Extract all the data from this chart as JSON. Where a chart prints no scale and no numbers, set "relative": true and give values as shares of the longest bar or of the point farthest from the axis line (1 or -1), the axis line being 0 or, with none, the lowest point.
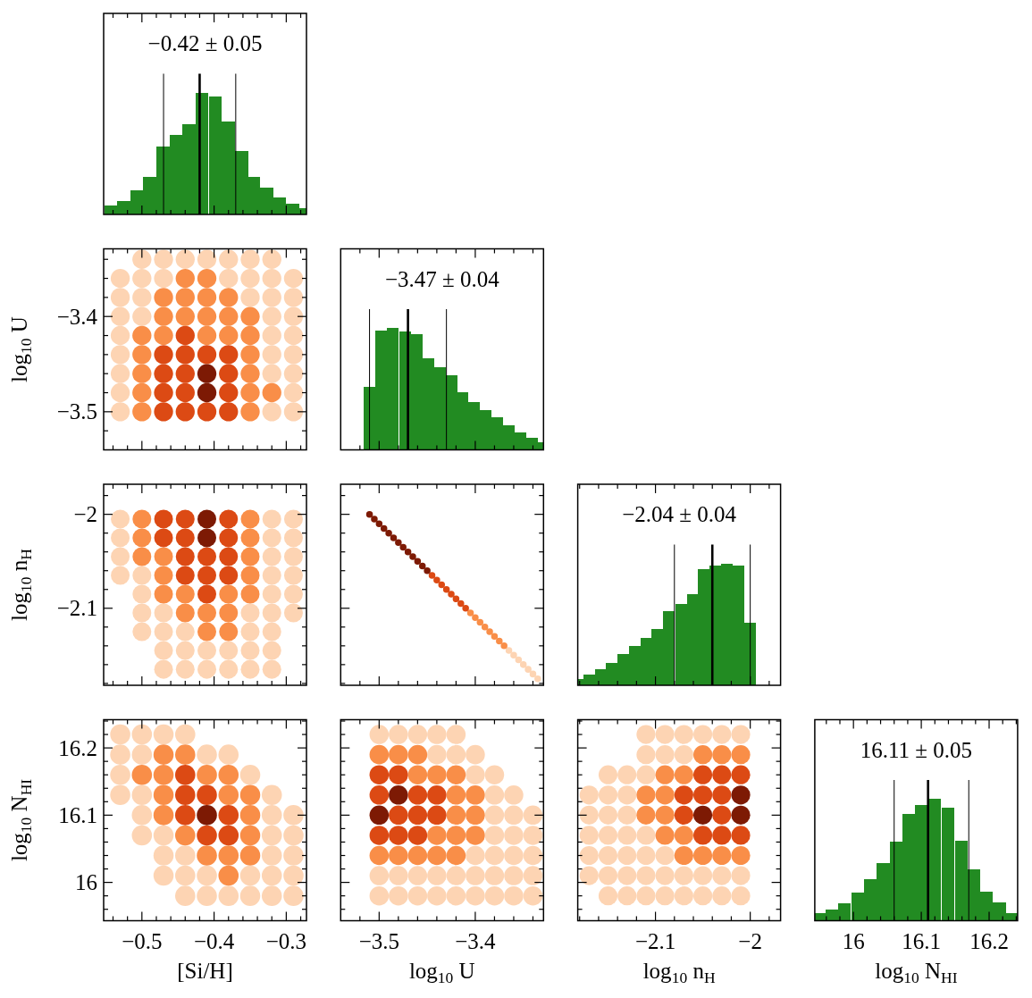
{
  "chart_data": [
    {
      "type": "bar",
      "title": "−0.42 ± 0.05",
      "relative": true,
      "color": "#228b22",
      "x": [
        -0.543,
        -0.525,
        -0.507,
        -0.489,
        -0.471,
        -0.453,
        -0.435,
        -0.417,
        -0.398,
        -0.38,
        -0.362,
        -0.345,
        -0.327,
        -0.309,
        -0.291,
        -0.273
      ],
      "values": [
        0.07,
        0.11,
        0.2,
        0.31,
        0.56,
        0.65,
        0.74,
        1,
        0.97,
        0.76,
        0.52,
        0.31,
        0.22,
        0.14,
        0.09,
        0.05
      ],
      "xlim": [
        -0.553,
        -0.272
      ],
      "xticks": [
        {
          "value": -0.54,
          "label": null
        },
        {
          "value": -0.52,
          "label": null
        },
        -0.5,
        {
          "value": -0.48,
          "label": null
        },
        {
          "value": -0.46,
          "label": null
        },
        {
          "value": -0.44,
          "label": null
        },
        {
          "value": -0.42,
          "label": null
        },
        -0.4,
        {
          "value": -0.38,
          "label": null
        },
        {
          "value": -0.36,
          "label": null
        },
        {
          "value": -0.34,
          "label": null
        },
        {
          "value": -0.32,
          "label": null
        },
        -0.3,
        {
          "value": -0.28,
          "label": null
        }
      ],
      "ref_lines": [
        {
          "axis": "x",
          "value": -0.47,
          "color": "#000000"
        },
        {
          "axis": "x",
          "value": -0.42,
          "color": "#000000"
        },
        {
          "axis": "x",
          "value": -0.37,
          "color": "#000000"
        }
      ],
      "tick_labels": false
    },
    {
      "type": "scatter",
      "ylabel": "log$_{10}$ U",
      "marker": "circle",
      "xlim": [
        -0.553,
        -0.272
      ],
      "xticks": [
        {
          "value": -0.54,
          "label": null
        },
        {
          "value": -0.52,
          "label": null
        },
        -0.5,
        {
          "value": -0.48,
          "label": null
        },
        {
          "value": -0.46,
          "label": null
        },
        {
          "value": -0.44,
          "label": null
        },
        {
          "value": -0.42,
          "label": null
        },
        -0.4,
        {
          "value": -0.38,
          "label": null
        },
        {
          "value": -0.36,
          "label": null
        },
        {
          "value": -0.34,
          "label": null
        },
        {
          "value": -0.32,
          "label": null
        },
        -0.3,
        {
          "value": -0.28,
          "label": null
        }
      ],
      "ylim": [
        -3.54,
        -3.329
      ],
      "yticks": [
        {
          "value": -3.52,
          "label": null
        },
        {
          "value": -3.5,
          "label": "−3.5"
        },
        {
          "value": -3.48,
          "label": null
        },
        {
          "value": -3.46,
          "label": null
        },
        {
          "value": -3.44,
          "label": null
        },
        {
          "value": -3.42,
          "label": null
        },
        {
          "value": -3.4,
          "label": "−3.4"
        },
        {
          "value": -3.38,
          "label": null
        },
        {
          "value": -3.36,
          "label": null
        },
        {
          "value": -3.34,
          "label": null
        }
      ],
      "tick_labels": "y",
      "series": [
        {
          "color": "#fdd4b3",
          "x": [
            -0.5,
            -0.47,
            -0.44,
            -0.41,
            -0.38,
            -0.35,
            -0.32,
            -0.53,
            -0.5,
            -0.47,
            -0.38,
            -0.35,
            -0.32,
            -0.29,
            -0.53,
            -0.5,
            -0.35,
            -0.32,
            -0.29,
            -0.53,
            -0.5,
            -0.32,
            -0.29,
            -0.53,
            -0.32,
            -0.29,
            -0.53,
            -0.32,
            -0.29,
            -0.53,
            -0.32,
            -0.29,
            -0.53,
            -0.29,
            -0.53,
            -0.32,
            -0.29
          ],
          "values": [
            -3.34,
            -3.34,
            -3.34,
            -3.34,
            -3.34,
            -3.34,
            -3.34,
            -3.36,
            -3.36,
            -3.36,
            -3.36,
            -3.36,
            -3.36,
            -3.36,
            -3.38,
            -3.38,
            -3.38,
            -3.38,
            -3.38,
            -3.4,
            -3.4,
            -3.4,
            -3.4,
            -3.42,
            -3.42,
            -3.42,
            -3.44,
            -3.44,
            -3.44,
            -3.46,
            -3.46,
            -3.46,
            -3.48,
            -3.48,
            -3.5,
            -3.5,
            -3.5
          ]
        },
        {
          "color": "#f98e48",
          "x": [
            -0.44,
            -0.41,
            -0.47,
            -0.44,
            -0.41,
            -0.38,
            -0.47,
            -0.44,
            -0.41,
            -0.38,
            -0.35,
            -0.5,
            -0.47,
            -0.41,
            -0.38,
            -0.35,
            -0.5,
            -0.35,
            -0.5,
            -0.35,
            -0.5,
            -0.35,
            -0.32,
            -0.5,
            -0.35
          ],
          "values": [
            -3.36,
            -3.36,
            -3.38,
            -3.38,
            -3.38,
            -3.38,
            -3.4,
            -3.4,
            -3.4,
            -3.4,
            -3.4,
            -3.42,
            -3.42,
            -3.42,
            -3.42,
            -3.42,
            -3.44,
            -3.44,
            -3.46,
            -3.46,
            -3.48,
            -3.48,
            -3.48,
            -3.5,
            -3.5
          ]
        },
        {
          "color": "#dc4a14",
          "x": [
            -0.44,
            -0.47,
            -0.44,
            -0.41,
            -0.38,
            -0.47,
            -0.44,
            -0.38,
            -0.47,
            -0.44,
            -0.38,
            -0.47,
            -0.44,
            -0.41,
            -0.38
          ],
          "values": [
            -3.42,
            -3.44,
            -3.44,
            -3.44,
            -3.44,
            -3.46,
            -3.46,
            -3.46,
            -3.48,
            -3.48,
            -3.48,
            -3.5,
            -3.5,
            -3.5,
            -3.5
          ]
        },
        {
          "color": "#7d1a04",
          "x": [
            -0.41,
            -0.41
          ],
          "values": [
            -3.46,
            -3.48
          ]
        }
      ]
    },
    {
      "type": "bar",
      "title": "−3.47 ± 0.04",
      "relative": true,
      "color": "#228b22",
      "x": [
        -3.51,
        -3.498,
        -3.486,
        -3.473,
        -3.461,
        -3.449,
        -3.437,
        -3.425,
        -3.413,
        -3.401,
        -3.389,
        -3.377,
        -3.365,
        -3.353,
        -3.341,
        -3.329
      ],
      "values": [
        0.52,
        0.98,
        1,
        0.97,
        0.95,
        0.75,
        0.68,
        0.61,
        0.47,
        0.39,
        0.33,
        0.27,
        0.2,
        0.14,
        0.1,
        0.06
      ],
      "xlim": [
        -3.54,
        -3.329
      ],
      "xticks": [
        {
          "value": -3.52,
          "label": null
        },
        -3.5,
        {
          "value": -3.48,
          "label": null
        },
        {
          "value": -3.46,
          "label": null
        },
        {
          "value": -3.44,
          "label": null
        },
        {
          "value": -3.42,
          "label": null
        },
        -3.4,
        {
          "value": -3.38,
          "label": null
        },
        {
          "value": -3.36,
          "label": null
        },
        {
          "value": -3.34,
          "label": null
        }
      ],
      "ref_lines": [
        {
          "axis": "x",
          "value": -3.51,
          "color": "#000000"
        },
        {
          "axis": "x",
          "value": -3.47,
          "color": "#000000"
        },
        {
          "axis": "x",
          "value": -3.43,
          "color": "#000000"
        }
      ],
      "tick_labels": false
    },
    {
      "type": "scatter",
      "ylabel": "log$_{10}$ n$_{H}$",
      "marker": "circle",
      "xlim": [
        -0.553,
        -0.272
      ],
      "xticks": [
        {
          "value": -0.54,
          "label": null
        },
        {
          "value": -0.52,
          "label": null
        },
        -0.5,
        {
          "value": -0.48,
          "label": null
        },
        {
          "value": -0.46,
          "label": null
        },
        {
          "value": -0.44,
          "label": null
        },
        {
          "value": -0.42,
          "label": null
        },
        -0.4,
        {
          "value": -0.38,
          "label": null
        },
        {
          "value": -0.36,
          "label": null
        },
        {
          "value": -0.34,
          "label": null
        },
        {
          "value": -0.32,
          "label": null
        },
        -0.3,
        {
          "value": -0.28,
          "label": null
        }
      ],
      "ylim": [
        -2.182,
        -1.968
      ],
      "yticks": [
        {
          "value": -2.18,
          "label": null
        },
        {
          "value": -2.16,
          "label": null
        },
        {
          "value": -2.14,
          "label": null
        },
        {
          "value": -2.12,
          "label": null
        },
        {
          "value": -2.1,
          "label": "−2.1"
        },
        {
          "value": -2.08,
          "label": null
        },
        {
          "value": -2.06,
          "label": null
        },
        {
          "value": -2.04,
          "label": null
        },
        {
          "value": -2.02,
          "label": null
        },
        {
          "value": -2,
          "label": "−2"
        },
        {
          "value": -1.98,
          "label": null
        }
      ],
      "tick_labels": "y",
      "series": [
        {
          "color": "#fdd4b3",
          "x": [
            -0.53,
            -0.32,
            -0.29,
            -0.53,
            -0.32,
            -0.29,
            -0.53,
            -0.32,
            -0.29,
            -0.53,
            -0.5,
            -0.32,
            -0.29,
            -0.5,
            -0.32,
            -0.29,
            -0.5,
            -0.47,
            -0.35,
            -0.32,
            -0.29,
            -0.5,
            -0.47,
            -0.44,
            -0.35,
            -0.32,
            -0.47,
            -0.44,
            -0.41,
            -0.38,
            -0.35,
            -0.32,
            -0.47,
            -0.44,
            -0.41,
            -0.38,
            -0.35,
            -0.32
          ],
          "values": [
            -2.005,
            -2.005,
            -2.005,
            -2.025,
            -2.025,
            -2.025,
            -2.045,
            -2.045,
            -2.045,
            -2.065,
            -2.065,
            -2.065,
            -2.065,
            -2.085,
            -2.085,
            -2.085,
            -2.105,
            -2.105,
            -2.105,
            -2.105,
            -2.105,
            -2.125,
            -2.125,
            -2.125,
            -2.125,
            -2.125,
            -2.145,
            -2.145,
            -2.145,
            -2.145,
            -2.145,
            -2.145,
            -2.165,
            -2.165,
            -2.165,
            -2.165,
            -2.165,
            -2.165
          ]
        },
        {
          "color": "#f98e48",
          "x": [
            -0.5,
            -0.35,
            -0.5,
            -0.35,
            -0.5,
            -0.47,
            -0.35,
            -0.47,
            -0.35,
            -0.47,
            -0.44,
            -0.38,
            -0.35,
            -0.44,
            -0.41,
            -0.38,
            -0.41,
            -0.38
          ],
          "values": [
            -2.005,
            -2.005,
            -2.025,
            -2.025,
            -2.045,
            -2.045,
            -2.045,
            -2.065,
            -2.065,
            -2.085,
            -2.085,
            -2.085,
            -2.085,
            -2.105,
            -2.105,
            -2.105,
            -2.125,
            -2.125
          ]
        },
        {
          "color": "#dc4a14",
          "x": [
            -0.47,
            -0.44,
            -0.38,
            -0.47,
            -0.44,
            -0.38,
            -0.44,
            -0.41,
            -0.38,
            -0.44,
            -0.41,
            -0.38,
            -0.41
          ],
          "values": [
            -2.005,
            -2.005,
            -2.005,
            -2.025,
            -2.025,
            -2.025,
            -2.045,
            -2.045,
            -2.045,
            -2.065,
            -2.065,
            -2.065,
            -2.085
          ]
        },
        {
          "color": "#7d1a04",
          "x": [
            -0.41,
            -0.41
          ],
          "values": [
            -2.005,
            -2.025
          ]
        }
      ]
    },
    {
      "type": "scatter",
      "marker": "circle",
      "xlim": [
        -3.54,
        -3.329
      ],
      "xticks": [
        {
          "value": -3.52,
          "label": null
        },
        -3.5,
        {
          "value": -3.48,
          "label": null
        },
        {
          "value": -3.46,
          "label": null
        },
        {
          "value": -3.44,
          "label": null
        },
        {
          "value": -3.42,
          "label": null
        },
        -3.4,
        {
          "value": -3.38,
          "label": null
        },
        {
          "value": -3.36,
          "label": null
        },
        {
          "value": -3.34,
          "label": null
        }
      ],
      "ylim": [
        -2.182,
        -1.968
      ],
      "yticks": [
        {
          "value": -2.18,
          "label": null
        },
        {
          "value": -2.16,
          "label": null
        },
        {
          "value": -2.14,
          "label": null
        },
        {
          "value": -2.12,
          "label": null
        },
        -2.1,
        {
          "value": -2.08,
          "label": null
        },
        {
          "value": -2.06,
          "label": null
        },
        {
          "value": -2.04,
          "label": null
        },
        {
          "value": -2.02,
          "label": null
        },
        -2,
        {
          "value": -1.98,
          "label": null
        }
      ],
      "tick_labels": false,
      "series": [
        {
          "color": "#fdd4b3",
          "x": [
            -3.365,
            -3.36,
            -3.355,
            -3.35,
            -3.345,
            -3.34,
            -3.335
          ],
          "values": [
            -2.145,
            -2.15,
            -2.155,
            -2.16,
            -2.165,
            -2.17,
            -2.175
          ]
        },
        {
          "color": "#f98e48",
          "x": [
            -3.405,
            -3.4,
            -3.395,
            -3.39,
            -3.385,
            -3.38,
            -3.375,
            -3.37
          ],
          "values": [
            -2.105,
            -2.11,
            -2.115,
            -2.12,
            -2.125,
            -2.13,
            -2.135,
            -2.14
          ]
        },
        {
          "color": "#dc4a14",
          "x": [
            -3.445,
            -3.44,
            -3.435,
            -3.43,
            -3.425,
            -3.42,
            -3.415,
            -3.41
          ],
          "values": [
            -2.065,
            -2.07,
            -2.075,
            -2.08,
            -2.085,
            -2.09,
            -2.095,
            -2.1
          ]
        },
        {
          "color": "#7d1a04",
          "x": [
            -3.51,
            -3.505,
            -3.5,
            -3.495,
            -3.49,
            -3.485,
            -3.48,
            -3.475,
            -3.47,
            -3.465,
            -3.46,
            -3.455,
            -3.45
          ],
          "values": [
            -2,
            -2.005,
            -2.01,
            -2.015,
            -2.02,
            -2.025,
            -2.03,
            -2.035,
            -2.04,
            -2.045,
            -2.05,
            -2.055,
            -2.06
          ]
        }
      ]
    },
    {
      "type": "bar",
      "title": "−2.04 ± 0.04",
      "relative": true,
      "color": "#228b22",
      "x": [
        -2.182,
        -2.17,
        -2.158,
        -2.146,
        -2.134,
        -2.122,
        -2.11,
        -2.098,
        -2.086,
        -2.073,
        -2.061,
        -2.049,
        -2.037,
        -2.025,
        -2.012,
        -2.0
      ],
      "values": [
        0.05,
        0.09,
        0.13,
        0.18,
        0.26,
        0.32,
        0.39,
        0.46,
        0.61,
        0.67,
        0.75,
        0.95,
        0.98,
        1,
        0.98,
        0.51
      ],
      "xlim": [
        -2.182,
        -1.968
      ],
      "xticks": [
        {
          "value": -2.18,
          "label": null
        },
        {
          "value": -2.16,
          "label": null
        },
        {
          "value": -2.14,
          "label": null
        },
        {
          "value": -2.12,
          "label": null
        },
        -2.1,
        {
          "value": -2.08,
          "label": null
        },
        {
          "value": -2.06,
          "label": null
        },
        {
          "value": -2.04,
          "label": null
        },
        {
          "value": -2.02,
          "label": null
        },
        -2,
        {
          "value": -1.98,
          "label": null
        }
      ],
      "ref_lines": [
        {
          "axis": "x",
          "value": -2.08,
          "color": "#000000"
        },
        {
          "axis": "x",
          "value": -2.04,
          "color": "#000000"
        },
        {
          "axis": "x",
          "value": -2.0,
          "color": "#000000"
        }
      ],
      "tick_labels": false
    },
    {
      "type": "scatter",
      "xlabel": "[Si/H]",
      "ylabel": "log$_{10}$ N$_{HI}$",
      "marker": "circle",
      "xlim": [
        -0.553,
        -0.272
      ],
      "xticks": [
        {
          "value": -0.54,
          "label": null
        },
        {
          "value": -0.52,
          "label": null
        },
        {
          "value": -0.5,
          "label": "−0.5"
        },
        {
          "value": -0.48,
          "label": null
        },
        {
          "value": -0.46,
          "label": null
        },
        {
          "value": -0.44,
          "label": null
        },
        {
          "value": -0.42,
          "label": null
        },
        {
          "value": -0.4,
          "label": "−0.4"
        },
        {
          "value": -0.38,
          "label": null
        },
        {
          "value": -0.36,
          "label": null
        },
        {
          "value": -0.34,
          "label": null
        },
        {
          "value": -0.32,
          "label": null
        },
        {
          "value": -0.3,
          "label": "−0.3"
        },
        {
          "value": -0.28,
          "label": null
        }
      ],
      "ylim": [
        15.943,
        16.242
      ],
      "yticks": [
        {
          "value": 15.96,
          "label": null
        },
        {
          "value": 15.98,
          "label": null
        },
        16,
        {
          "value": 16.02,
          "label": null
        },
        {
          "value": 16.04,
          "label": null
        },
        {
          "value": 16.06,
          "label": null
        },
        {
          "value": 16.08,
          "label": null
        },
        16.1,
        {
          "value": 16.12,
          "label": null
        },
        {
          "value": 16.14,
          "label": null
        },
        {
          "value": 16.16,
          "label": null
        },
        {
          "value": 16.18,
          "label": null
        },
        16.2,
        {
          "value": 16.22,
          "label": null
        },
        {
          "value": 16.24,
          "label": null
        }
      ],
      "series": [
        {
          "color": "#fdd4b3",
          "x": [
            -0.53,
            -0.5,
            -0.47,
            -0.44,
            -0.53,
            -0.5,
            -0.41,
            -0.38,
            -0.53,
            -0.35,
            -0.53,
            -0.5,
            -0.32,
            -0.5,
            -0.32,
            -0.29,
            -0.5,
            -0.47,
            -0.32,
            -0.29,
            -0.47,
            -0.44,
            -0.32,
            -0.29,
            -0.47,
            -0.44,
            -0.41,
            -0.35,
            -0.32,
            -0.29,
            -0.44,
            -0.41,
            -0.38,
            -0.35,
            -0.32,
            -0.29
          ],
          "values": [
            16.22,
            16.22,
            16.22,
            16.22,
            16.19,
            16.19,
            16.19,
            16.19,
            16.16,
            16.16,
            16.13,
            16.13,
            16.13,
            16.1,
            16.1,
            16.1,
            16.07,
            16.07,
            16.07,
            16.07,
            16.04,
            16.04,
            16.04,
            16.04,
            16.01,
            16.01,
            16.01,
            16.01,
            16.01,
            16.01,
            15.98,
            15.98,
            15.98,
            15.98,
            15.98,
            15.98
          ]
        },
        {
          "color": "#f98e48",
          "x": [
            -0.47,
            -0.44,
            -0.5,
            -0.47,
            -0.41,
            -0.38,
            -0.47,
            -0.38,
            -0.35,
            -0.47,
            -0.35,
            -0.44,
            -0.35,
            -0.41,
            -0.38,
            -0.35,
            -0.38
          ],
          "values": [
            16.19,
            16.19,
            16.16,
            16.16,
            16.16,
            16.16,
            16.13,
            16.13,
            16.13,
            16.1,
            16.1,
            16.07,
            16.07,
            16.04,
            16.04,
            16.04,
            16.01
          ]
        },
        {
          "color": "#dc4a14",
          "x": [
            -0.44,
            -0.44,
            -0.41,
            -0.44,
            -0.38,
            -0.41,
            -0.38
          ],
          "values": [
            16.16,
            16.13,
            16.13,
            16.1,
            16.1,
            16.07,
            16.07
          ]
        },
        {
          "color": "#7d1a04",
          "x": [
            -0.41
          ],
          "values": [
            16.1
          ]
        }
      ]
    },
    {
      "type": "scatter",
      "xlabel": "log$_{10}$ U",
      "marker": "circle",
      "xlim": [
        -3.54,
        -3.329
      ],
      "xticks": [
        {
          "value": -3.52,
          "label": null
        },
        {
          "value": -3.5,
          "label": "−3.5"
        },
        {
          "value": -3.48,
          "label": null
        },
        {
          "value": -3.46,
          "label": null
        },
        {
          "value": -3.44,
          "label": null
        },
        {
          "value": -3.42,
          "label": null
        },
        {
          "value": -3.4,
          "label": "−3.4"
        },
        {
          "value": -3.38,
          "label": null
        },
        {
          "value": -3.36,
          "label": null
        },
        {
          "value": -3.34,
          "label": null
        }
      ],
      "ylim": [
        15.943,
        16.242
      ],
      "yticks": [
        {
          "value": 15.96,
          "label": null
        },
        {
          "value": 15.98,
          "label": null
        },
        16,
        {
          "value": 16.02,
          "label": null
        },
        {
          "value": 16.04,
          "label": null
        },
        {
          "value": 16.06,
          "label": null
        },
        {
          "value": 16.08,
          "label": null
        },
        16.1,
        {
          "value": 16.12,
          "label": null
        },
        {
          "value": 16.14,
          "label": null
        },
        {
          "value": 16.16,
          "label": null
        },
        {
          "value": 16.18,
          "label": null
        },
        16.2,
        {
          "value": 16.22,
          "label": null
        },
        {
          "value": 16.24,
          "label": null
        }
      ],
      "tick_labels": "x",
      "series": [
        {
          "color": "#fdd4b3",
          "x": [
            -3.5,
            -3.48,
            -3.46,
            -3.44,
            -3.42,
            -3.44,
            -3.42,
            -3.4,
            -3.4,
            -3.38,
            -3.38,
            -3.36,
            -3.38,
            -3.36,
            -3.34,
            -3.38,
            -3.36,
            -3.34,
            -3.4,
            -3.38,
            -3.36,
            -3.34,
            -3.5,
            -3.48,
            -3.46,
            -3.44,
            -3.42,
            -3.4,
            -3.38,
            -3.36,
            -3.34,
            -3.5,
            -3.48,
            -3.46,
            -3.44,
            -3.42,
            -3.4,
            -3.38,
            -3.36,
            -3.34
          ],
          "values": [
            16.22,
            16.22,
            16.22,
            16.22,
            16.22,
            16.19,
            16.19,
            16.19,
            16.16,
            16.16,
            16.13,
            16.13,
            16.1,
            16.1,
            16.1,
            16.07,
            16.07,
            16.07,
            16.04,
            16.04,
            16.04,
            16.04,
            16.01,
            16.01,
            16.01,
            16.01,
            16.01,
            16.01,
            16.01,
            16.01,
            16.01,
            15.98,
            15.98,
            15.98,
            15.98,
            15.98,
            15.98,
            15.98,
            15.98,
            15.98
          ]
        },
        {
          "color": "#f98e48",
          "x": [
            -3.5,
            -3.48,
            -3.46,
            -3.46,
            -3.44,
            -3.42,
            -3.42,
            -3.4,
            -3.42,
            -3.4,
            -3.44,
            -3.42,
            -3.4,
            -3.5,
            -3.48,
            -3.46,
            -3.44,
            -3.42
          ],
          "values": [
            16.19,
            16.19,
            16.19,
            16.16,
            16.16,
            16.16,
            16.13,
            16.13,
            16.1,
            16.1,
            16.07,
            16.07,
            16.07,
            16.04,
            16.04,
            16.04,
            16.04,
            16.04
          ]
        },
        {
          "color": "#dc4a14",
          "x": [
            -3.5,
            -3.48,
            -3.5,
            -3.46,
            -3.44,
            -3.48,
            -3.46,
            -3.44,
            -3.5,
            -3.48,
            -3.46
          ],
          "values": [
            16.16,
            16.16,
            16.13,
            16.13,
            16.13,
            16.1,
            16.1,
            16.1,
            16.07,
            16.07,
            16.07
          ]
        },
        {
          "color": "#7d1a04",
          "x": [
            -3.48,
            -3.5
          ],
          "values": [
            16.13,
            16.1
          ]
        }
      ]
    },
    {
      "type": "scatter",
      "xlabel": "log$_{10}$ n$_{H}$",
      "marker": "circle",
      "xlim": [
        -2.182,
        -1.968
      ],
      "xticks": [
        {
          "value": -2.18,
          "label": null
        },
        {
          "value": -2.16,
          "label": null
        },
        {
          "value": -2.14,
          "label": null
        },
        {
          "value": -2.12,
          "label": null
        },
        {
          "value": -2.1,
          "label": "−2.1"
        },
        {
          "value": -2.08,
          "label": null
        },
        {
          "value": -2.06,
          "label": null
        },
        {
          "value": -2.04,
          "label": null
        },
        {
          "value": -2.02,
          "label": null
        },
        {
          "value": -2,
          "label": "−2"
        },
        {
          "value": -1.98,
          "label": null
        }
      ],
      "ylim": [
        15.943,
        16.242
      ],
      "yticks": [
        {
          "value": 15.96,
          "label": null
        },
        {
          "value": 15.98,
          "label": null
        },
        16,
        {
          "value": 16.02,
          "label": null
        },
        {
          "value": 16.04,
          "label": null
        },
        {
          "value": 16.06,
          "label": null
        },
        {
          "value": 16.08,
          "label": null
        },
        16.1,
        {
          "value": 16.12,
          "label": null
        },
        {
          "value": 16.14,
          "label": null
        },
        {
          "value": 16.16,
          "label": null
        },
        {
          "value": 16.18,
          "label": null
        },
        16.2,
        {
          "value": 16.22,
          "label": null
        },
        {
          "value": 16.24,
          "label": null
        }
      ],
      "tick_labels": "x",
      "series": [
        {
          "color": "#fdd4b3",
          "x": [
            -2.11,
            -2.09,
            -2.07,
            -2.05,
            -2.03,
            -2.01,
            -2.11,
            -2.09,
            -2.07,
            -2.15,
            -2.13,
            -2.11,
            -2.17,
            -2.15,
            -2.13,
            -2.17,
            -2.15,
            -2.13,
            -2.17,
            -2.15,
            -2.13,
            -2.11,
            -2.17,
            -2.15,
            -2.13,
            -2.11,
            -2.09,
            -2.17,
            -2.15,
            -2.13,
            -2.11,
            -2.09,
            -2.07,
            -2.05,
            -2.03,
            -2.01,
            -2.15,
            -2.13,
            -2.11,
            -2.09,
            -2.07,
            -2.05,
            -2.03,
            -2.01
          ],
          "values": [
            16.22,
            16.22,
            16.22,
            16.22,
            16.22,
            16.22,
            16.19,
            16.19,
            16.19,
            16.16,
            16.16,
            16.16,
            16.13,
            16.13,
            16.13,
            16.1,
            16.1,
            16.1,
            16.07,
            16.07,
            16.07,
            16.07,
            16.04,
            16.04,
            16.04,
            16.04,
            16.04,
            16.01,
            16.01,
            16.01,
            16.01,
            16.01,
            16.01,
            16.01,
            16.01,
            16.01,
            15.98,
            15.98,
            15.98,
            15.98,
            15.98,
            15.98,
            15.98,
            15.98
          ]
        },
        {
          "color": "#f98e48",
          "x": [
            -2.05,
            -2.03,
            -2.01,
            -2.09,
            -2.07,
            -2.11,
            -2.09,
            -2.11,
            -2.09,
            -2.09,
            -2.07,
            -2.07,
            -2.05,
            -2.03,
            -2.01
          ],
          "values": [
            16.19,
            16.19,
            16.19,
            16.16,
            16.16,
            16.13,
            16.13,
            16.1,
            16.1,
            16.07,
            16.07,
            16.04,
            16.04,
            16.04,
            16.04
          ]
        },
        {
          "color": "#dc4a14",
          "x": [
            -2.05,
            -2.03,
            -2.01,
            -2.07,
            -2.05,
            -2.03,
            -2.07,
            -2.03,
            -2.05,
            -2.03,
            -2.01
          ],
          "values": [
            16.16,
            16.16,
            16.16,
            16.13,
            16.13,
            16.13,
            16.1,
            16.1,
            16.07,
            16.07,
            16.07
          ]
        },
        {
          "color": "#7d1a04",
          "x": [
            -2.01,
            -2.05,
            -2.01
          ],
          "values": [
            16.13,
            16.1,
            16.1
          ]
        }
      ]
    },
    {
      "type": "bar",
      "title": "16.11 ± 0.05",
      "xlabel": "log$_{10}$ N$_{HI}$",
      "relative": true,
      "color": "#228b22",
      "x": [
        15.95,
        15.968,
        15.987,
        16.006,
        16.025,
        16.044,
        16.063,
        16.081,
        16.1,
        16.119,
        16.139,
        16.159,
        16.178,
        16.196,
        16.215,
        16.233
      ],
      "values": [
        0.06,
        0.09,
        0.14,
        0.23,
        0.34,
        0.47,
        0.65,
        0.88,
        0.95,
        1,
        0.93,
        0.66,
        0.42,
        0.24,
        0.15,
        0.06
      ],
      "xlim": [
        15.943,
        16.242
      ],
      "xticks": [
        {
          "value": 15.96,
          "label": null
        },
        {
          "value": 15.98,
          "label": null
        },
        16,
        {
          "value": 16.02,
          "label": null
        },
        {
          "value": 16.04,
          "label": null
        },
        {
          "value": 16.06,
          "label": null
        },
        {
          "value": 16.08,
          "label": null
        },
        16.1,
        {
          "value": 16.12,
          "label": null
        },
        {
          "value": 16.14,
          "label": null
        },
        {
          "value": 16.16,
          "label": null
        },
        {
          "value": 16.18,
          "label": null
        },
        16.2,
        {
          "value": 16.22,
          "label": null
        },
        {
          "value": 16.24,
          "label": null
        }
      ],
      "ref_lines": [
        {
          "axis": "x",
          "value": 16.06,
          "color": "#000000"
        },
        {
          "axis": "x",
          "value": 16.11,
          "color": "#000000"
        },
        {
          "axis": "x",
          "value": 16.17,
          "color": "#000000"
        }
      ],
      "tick_labels": "x"
    }
  ]
}
